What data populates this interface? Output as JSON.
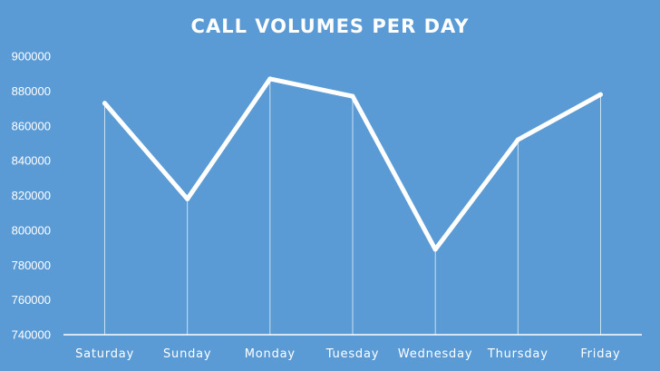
{
  "chart_data": {
    "type": "line",
    "title": "CALL VOLUMES PER DAY",
    "xlabel": "",
    "ylabel": "",
    "categories": [
      "Saturday",
      "Sunday",
      "Monday",
      "Tuesday",
      "Wednesday",
      "Thursday",
      "Friday"
    ],
    "series": [
      {
        "values": [
          873000,
          818000,
          887000,
          877000,
          789000,
          852000,
          878000
        ]
      }
    ],
    "ylim": [
      740000,
      900000
    ],
    "yticks": [
      "740000",
      "760000",
      "780000",
      "800000",
      "820000",
      "840000",
      "860000",
      "880000",
      "900000"
    ],
    "drop_lines": true,
    "grid": false,
    "colors": {
      "background": "#5b9bd5",
      "line": "#ffffff",
      "text": "#ffffff"
    }
  }
}
